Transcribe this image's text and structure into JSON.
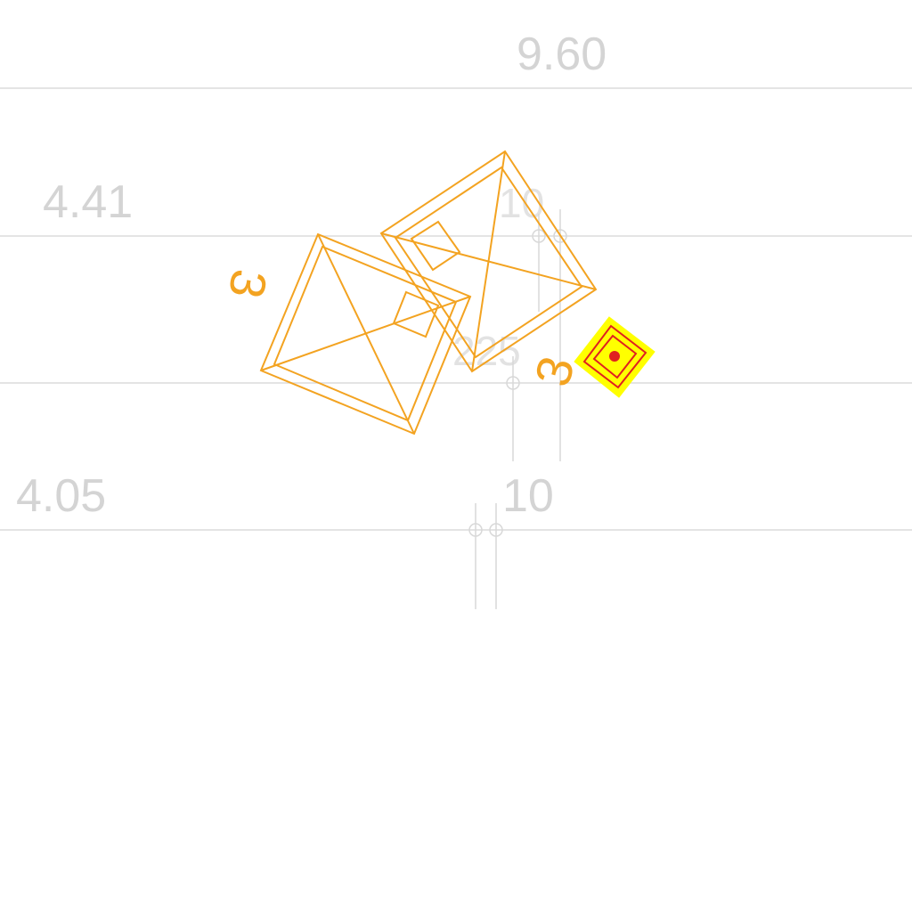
{
  "map": {
    "grid_labels": {
      "top": "9.60",
      "upper_left": "4.41",
      "lower_left": "4.05",
      "upper_center": "10",
      "lower_center": "10",
      "mid_center": "225"
    },
    "feature_labels": {
      "left_building": "3",
      "right_building": "3"
    },
    "colors": {
      "grid": "#dcdcdc",
      "label": "#d4d4d4",
      "building": "#f3a321",
      "marker_fill": "#ffff00",
      "marker_stroke": "#e02020"
    },
    "icons": [
      "location-marker-icon"
    ]
  }
}
